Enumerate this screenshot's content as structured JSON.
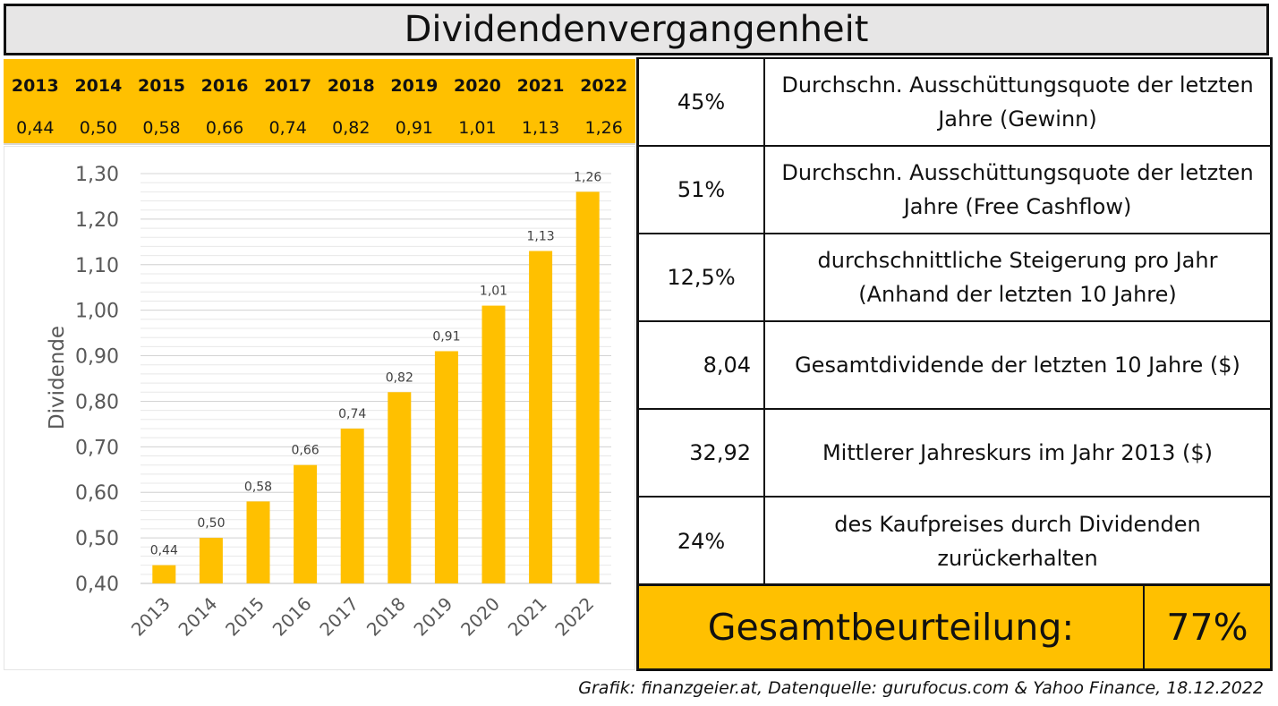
{
  "title": "Dividendenvergangenheit",
  "table": {
    "years": [
      "2013",
      "2014",
      "2015",
      "2016",
      "2017",
      "2018",
      "2019",
      "2020",
      "2021",
      "2022"
    ],
    "values": [
      "0,44",
      "0,50",
      "0,58",
      "0,66",
      "0,74",
      "0,82",
      "0,91",
      "1,01",
      "1,13",
      "1,26"
    ]
  },
  "chart_data": {
    "type": "bar",
    "categories": [
      "2013",
      "2014",
      "2015",
      "2016",
      "2017",
      "2018",
      "2019",
      "2020",
      "2021",
      "2022"
    ],
    "values": [
      0.44,
      0.5,
      0.58,
      0.66,
      0.74,
      0.82,
      0.91,
      1.01,
      1.13,
      1.26
    ],
    "value_labels": [
      "0,44",
      "0,50",
      "0,58",
      "0,66",
      "0,74",
      "0,82",
      "0,91",
      "1,01",
      "1,13",
      "1,26"
    ],
    "ylabel": "Dividende",
    "ylim": [
      0.4,
      1.3
    ],
    "yticks": [
      "1,30",
      "1,20",
      "1,10",
      "1,00",
      "0,90",
      "0,80",
      "0,70",
      "0,60",
      "0,50",
      "0,40"
    ],
    "grid": true,
    "bar_color": "#ffc000"
  },
  "metrics": [
    {
      "value": "45%",
      "label": "Durchschn. Ausschüttungsquote der letzten Jahre (Gewinn)"
    },
    {
      "value": "51%",
      "label": "Durchschn. Ausschüttungsquote der letzten Jahre (Free Cashflow)"
    },
    {
      "value": "12,5%",
      "label": "durchschnittliche Steigerung pro Jahr (Anhand der letzten 10 Jahre)"
    },
    {
      "value": "8,04",
      "label": "Gesamtdividende der letzten 10 Jahre ($)"
    },
    {
      "value": "32,92",
      "label": "Mittlerer Jahreskurs im Jahr 2013 ($)"
    },
    {
      "value": "24%",
      "label": "des Kaufpreises durch Dividenden zurückerhalten"
    }
  ],
  "summary": {
    "label": "Gesamtbeurteilung:",
    "value": "77%"
  },
  "source": "Grafik: finanzgeier.at, Datenquelle: gurufocus.com & Yahoo Finance, 18.12.2022",
  "colors": {
    "accent": "#ffc000",
    "title_bg": "#e7e6e6"
  }
}
